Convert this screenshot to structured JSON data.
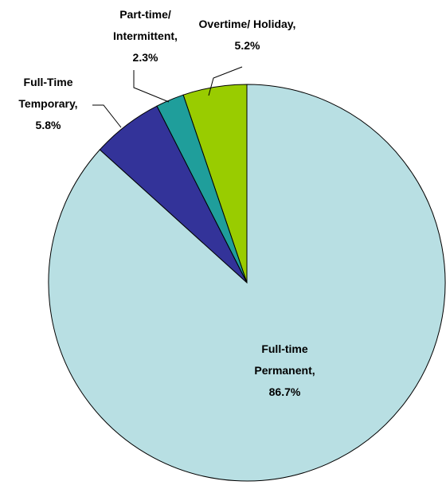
{
  "chart_data": {
    "type": "pie",
    "categories": [
      "Full-time Permanent,",
      "Full-Time Temporary,",
      "Part-time/ Intermittent,",
      "Overtime/ Holiday,"
    ],
    "values": [
      86.7,
      5.8,
      2.3,
      5.2
    ],
    "value_labels": [
      "86.7%",
      "5.8%",
      "2.3%",
      "5.2%"
    ],
    "colors": [
      "#b8dfe3",
      "#333399",
      "#1f9e9b",
      "#99cc00"
    ]
  }
}
